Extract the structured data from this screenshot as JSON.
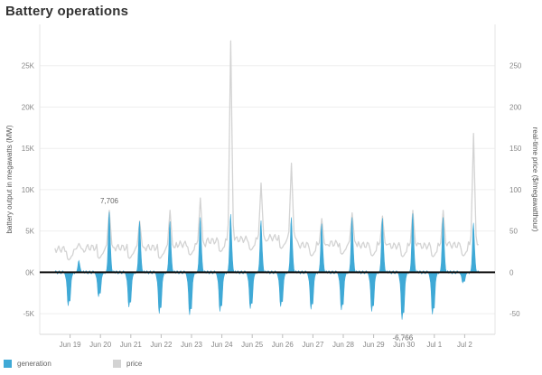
{
  "chart_data": {
    "type": "area",
    "title": "Battery operations",
    "ylabel": "battery output in megawatts (MW)",
    "y2label": "real-time price ($/megawatthour)",
    "xlabel": "",
    "ylim": [
      -7500,
      30000
    ],
    "y2lim": [
      -75,
      300
    ],
    "yticks": [
      -5000,
      0,
      5000,
      10000,
      15000,
      20000,
      25000
    ],
    "ytick_labels": [
      "-5K",
      "0K",
      "5K",
      "10K",
      "15K",
      "20K",
      "25K"
    ],
    "y2ticks": [
      -50,
      0,
      50,
      100,
      150,
      200,
      250
    ],
    "y2tick_labels": [
      "-50",
      "0",
      "50",
      "100",
      "150",
      "200",
      "250"
    ],
    "xlim": [
      "2025-06-18T12:00",
      "2025-07-03T12:00"
    ],
    "xticks": [
      "Jun 19",
      "Jun 20",
      "Jun 21",
      "Jun 22",
      "Jun 23",
      "Jun 24",
      "Jun 25",
      "Jun 26",
      "Jun 27",
      "Jun 28",
      "Jun 29",
      "Jun 30",
      "Jul 1",
      "Jul 2"
    ],
    "zero_line": true,
    "grid": true,
    "legend_position": "bottom-left",
    "series": [
      {
        "name": "generation",
        "axis": "left",
        "color": "#3fa9d6",
        "daily_peak_hour": 19,
        "daily_charge_hour": 11,
        "daily": [
          {
            "date": "2025-06-19",
            "peak": 1500,
            "trough": -4800
          },
          {
            "date": "2025-06-20",
            "peak": 7706,
            "trough": -3500
          },
          {
            "date": "2025-06-21",
            "peak": 6500,
            "trough": -5000
          },
          {
            "date": "2025-06-22",
            "peak": 6500,
            "trough": -5900
          },
          {
            "date": "2025-06-23",
            "peak": 7000,
            "trough": -6100
          },
          {
            "date": "2025-06-24",
            "peak": 7400,
            "trough": -5600
          },
          {
            "date": "2025-06-25",
            "peak": 6600,
            "trough": -5200
          },
          {
            "date": "2025-06-26",
            "peak": 7000,
            "trough": -4900
          },
          {
            "date": "2025-06-27",
            "peak": 6200,
            "trough": -5300
          },
          {
            "date": "2025-06-28",
            "peak": 7000,
            "trough": -5400
          },
          {
            "date": "2025-06-29",
            "peak": 6900,
            "trough": -5600
          },
          {
            "date": "2025-06-30",
            "peak": 7500,
            "trough": -6766
          },
          {
            "date": "2025-07-01",
            "peak": 7000,
            "trough": -6000
          },
          {
            "date": "2025-07-02",
            "peak": 6300,
            "trough": -1500
          }
        ]
      },
      {
        "name": "price",
        "axis": "right",
        "color": "#d3d3d3",
        "daily_peak_hour": 19,
        "daily": [
          {
            "date": "2025-06-19",
            "peak": 35,
            "base": 28
          },
          {
            "date": "2025-06-20",
            "peak": 75,
            "base": 30
          },
          {
            "date": "2025-06-21",
            "peak": 62,
            "base": 30
          },
          {
            "date": "2025-06-22",
            "peak": 75,
            "base": 30
          },
          {
            "date": "2025-06-23",
            "peak": 90,
            "base": 34
          },
          {
            "date": "2025-06-24",
            "peak": 280,
            "base": 38
          },
          {
            "date": "2025-06-25",
            "peak": 108,
            "base": 40
          },
          {
            "date": "2025-06-26",
            "peak": 132,
            "base": 42
          },
          {
            "date": "2025-06-27",
            "peak": 65,
            "base": 33
          },
          {
            "date": "2025-06-28",
            "peak": 72,
            "base": 35
          },
          {
            "date": "2025-06-29",
            "peak": 68,
            "base": 33
          },
          {
            "date": "2025-06-30",
            "peak": 75,
            "base": 32
          },
          {
            "date": "2025-07-01",
            "peak": 75,
            "base": 32
          },
          {
            "date": "2025-07-02",
            "peak": 168,
            "base": 33
          }
        ]
      }
    ],
    "annotations": [
      {
        "text": "7,706",
        "x": "2025-06-20T19:00",
        "y": 7706,
        "axis": "left",
        "position": "above"
      },
      {
        "text": "-6,766",
        "x": "2025-06-30T11:00",
        "y": -6766,
        "axis": "left",
        "position": "below"
      }
    ]
  },
  "legend": {
    "items": [
      {
        "label": "generation",
        "color": "#3fa9d6"
      },
      {
        "label": "price",
        "color": "#d3d3d3"
      }
    ]
  }
}
